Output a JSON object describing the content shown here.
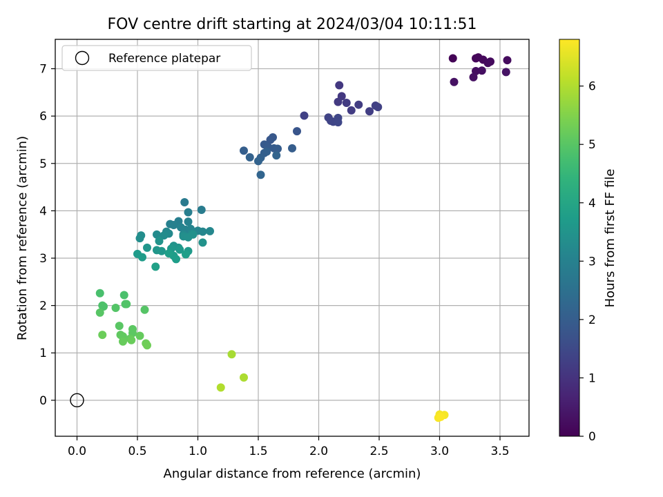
{
  "chart_data": {
    "type": "scatter",
    "title": "FOV centre drift starting at 2024/03/04 10:11:51",
    "xlabel": "Angular distance from reference (arcmin)",
    "ylabel": "Rotation from reference (arcmin)",
    "xlim": [
      -0.18,
      3.74
    ],
    "ylim": [
      -0.76,
      7.62
    ],
    "xticks": [
      0.0,
      0.5,
      1.0,
      1.5,
      2.0,
      2.5,
      3.0,
      3.5
    ],
    "xtick_labels": [
      "0.0",
      "0.5",
      "1.0",
      "1.5",
      "2.0",
      "2.5",
      "3.0",
      "3.5"
    ],
    "yticks": [
      0,
      1,
      2,
      3,
      4,
      5,
      6,
      7
    ],
    "ytick_labels": [
      "0",
      "1",
      "2",
      "3",
      "4",
      "5",
      "6",
      "7"
    ],
    "grid": true,
    "legend": {
      "placement": "top-left",
      "entries": [
        "Reference platepar"
      ]
    },
    "reference_point": {
      "name": "Reference platepar",
      "x": 0.0,
      "y": 0.0
    },
    "colorbar": {
      "label": "Hours from first FF file",
      "colormap": "viridis",
      "range": [
        0,
        6.8
      ],
      "ticks": [
        0,
        1,
        2,
        3,
        4,
        5,
        6
      ],
      "tick_labels": [
        "0",
        "1",
        "2",
        "3",
        "4",
        "5",
        "6"
      ]
    },
    "points": [
      [
        3.11,
        7.22,
        0.05
      ],
      [
        3.3,
        7.22,
        0.1
      ],
      [
        3.32,
        7.24,
        0.12
      ],
      [
        3.36,
        7.19,
        0.15
      ],
      [
        3.42,
        7.15,
        0.18
      ],
      [
        3.4,
        7.12,
        0.2
      ],
      [
        3.56,
        7.18,
        0.22
      ],
      [
        3.3,
        6.95,
        0.25
      ],
      [
        3.35,
        6.96,
        0.28
      ],
      [
        3.28,
        6.82,
        0.3
      ],
      [
        3.12,
        6.72,
        0.32
      ],
      [
        3.55,
        6.93,
        0.35
      ],
      [
        2.17,
        6.65,
        1.1
      ],
      [
        2.19,
        6.42,
        1.12
      ],
      [
        2.16,
        6.3,
        1.15
      ],
      [
        2.23,
        6.28,
        1.18
      ],
      [
        2.27,
        6.12,
        1.2
      ],
      [
        2.33,
        6.24,
        1.22
      ],
      [
        2.42,
        6.1,
        1.25
      ],
      [
        2.47,
        6.22,
        1.28
      ],
      [
        2.49,
        6.19,
        1.3
      ],
      [
        1.88,
        6.01,
        1.32
      ],
      [
        2.08,
        5.97,
        1.35
      ],
      [
        2.1,
        5.9,
        1.38
      ],
      [
        2.12,
        5.88,
        1.4
      ],
      [
        2.16,
        5.96,
        1.42
      ],
      [
        2.16,
        5.87,
        1.45
      ],
      [
        1.82,
        5.68,
        1.8
      ],
      [
        1.6,
        5.5,
        1.85
      ],
      [
        1.62,
        5.55,
        1.87
      ],
      [
        1.55,
        5.4,
        1.9
      ],
      [
        1.58,
        5.35,
        1.92
      ],
      [
        1.63,
        5.32,
        1.95
      ],
      [
        1.66,
        5.31,
        1.97
      ],
      [
        1.78,
        5.32,
        2.0
      ],
      [
        1.38,
        5.27,
        2.02
      ],
      [
        1.55,
        5.22,
        2.05
      ],
      [
        1.57,
        5.25,
        2.07
      ],
      [
        1.52,
        5.12,
        2.1
      ],
      [
        1.43,
        5.13,
        2.12
      ],
      [
        1.5,
        5.05,
        2.15
      ],
      [
        1.65,
        5.17,
        2.17
      ],
      [
        1.52,
        4.76,
        2.2
      ],
      [
        0.89,
        4.18,
        2.8
      ],
      [
        1.03,
        4.02,
        2.85
      ],
      [
        0.92,
        3.97,
        2.9
      ],
      [
        0.84,
        3.78,
        2.92
      ],
      [
        0.77,
        3.72,
        2.95
      ],
      [
        0.8,
        3.7,
        2.97
      ],
      [
        0.92,
        3.77,
        3.0
      ],
      [
        0.86,
        3.65,
        3.02
      ],
      [
        0.9,
        3.6,
        3.05
      ],
      [
        0.94,
        3.62,
        3.07
      ],
      [
        1.0,
        3.58,
        3.1
      ],
      [
        1.04,
        3.56,
        3.12
      ],
      [
        1.1,
        3.57,
        3.15
      ],
      [
        0.74,
        3.56,
        3.17
      ],
      [
        0.76,
        3.52,
        3.2
      ],
      [
        0.88,
        3.5,
        3.22
      ],
      [
        0.95,
        3.52,
        3.25
      ],
      [
        0.66,
        3.5,
        3.27
      ],
      [
        0.72,
        3.48,
        3.3
      ],
      [
        0.53,
        3.48,
        3.32
      ],
      [
        0.52,
        3.42,
        3.35
      ],
      [
        0.88,
        3.46,
        3.37
      ],
      [
        0.92,
        3.44,
        3.4
      ],
      [
        0.96,
        3.5,
        3.42
      ],
      [
        1.04,
        3.33,
        3.45
      ],
      [
        0.68,
        3.36,
        3.47
      ],
      [
        0.8,
        3.26,
        3.5
      ],
      [
        0.84,
        3.22,
        3.52
      ],
      [
        0.58,
        3.22,
        3.55
      ],
      [
        0.66,
        3.17,
        3.57
      ],
      [
        0.7,
        3.15,
        3.6
      ],
      [
        0.78,
        3.2,
        3.62
      ],
      [
        0.85,
        3.18,
        3.65
      ],
      [
        0.92,
        3.15,
        3.67
      ],
      [
        0.5,
        3.09,
        3.7
      ],
      [
        0.54,
        3.02,
        3.72
      ],
      [
        0.8,
        3.05,
        3.75
      ],
      [
        0.82,
        2.98,
        3.77
      ],
      [
        0.9,
        3.08,
        3.8
      ],
      [
        0.76,
        3.1,
        3.82
      ],
      [
        0.65,
        2.82,
        3.85
      ],
      [
        0.19,
        2.26,
        4.8
      ],
      [
        0.39,
        2.22,
        4.82
      ],
      [
        0.21,
        2.0,
        4.85
      ],
      [
        0.22,
        1.98,
        4.87
      ],
      [
        0.4,
        2.03,
        4.9
      ],
      [
        0.41,
        2.03,
        4.92
      ],
      [
        0.32,
        1.95,
        4.95
      ],
      [
        0.56,
        1.91,
        4.97
      ],
      [
        0.19,
        1.85,
        5.0
      ],
      [
        0.35,
        1.57,
        5.02
      ],
      [
        0.46,
        1.5,
        5.05
      ],
      [
        0.46,
        1.42,
        5.07
      ],
      [
        0.36,
        1.38,
        5.1
      ],
      [
        0.38,
        1.35,
        5.12
      ],
      [
        0.44,
        1.3,
        5.15
      ],
      [
        0.52,
        1.36,
        5.17
      ],
      [
        0.38,
        1.24,
        5.2
      ],
      [
        0.45,
        1.27,
        5.22
      ],
      [
        0.21,
        1.38,
        5.25
      ],
      [
        0.57,
        1.2,
        5.27
      ],
      [
        0.58,
        1.16,
        5.3
      ],
      [
        1.28,
        0.97,
        5.9
      ],
      [
        1.38,
        0.48,
        5.95
      ],
      [
        1.19,
        0.27,
        6.0
      ],
      [
        3.0,
        -0.3,
        6.7
      ],
      [
        3.04,
        -0.31,
        6.72
      ],
      [
        2.99,
        -0.37,
        6.75
      ],
      [
        3.01,
        -0.35,
        6.78
      ]
    ]
  }
}
